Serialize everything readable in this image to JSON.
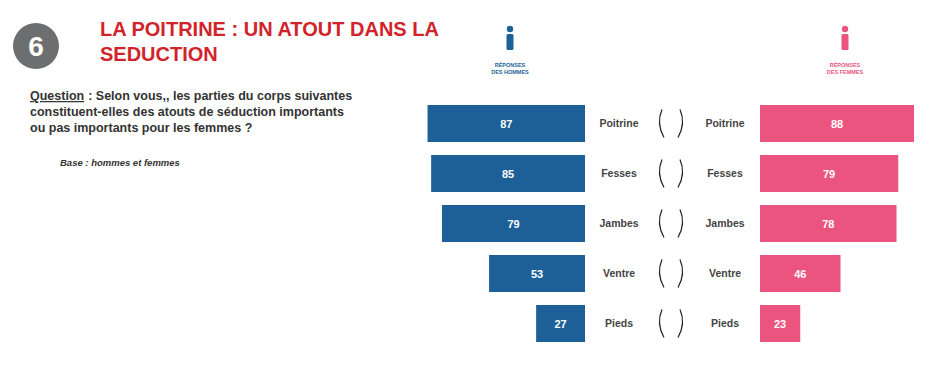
{
  "number": "6",
  "question_label": "Question",
  "question": ": Selon vous,, les parties du corps suivantes constituent-elles des atouts de séduction importants ou pas importants pour les femmes ?",
  "base": "Base : hommes et femmes",
  "chart_data": {
    "type": "bar",
    "orientation": "horizontal",
    "title": "LA POITRINE : UN ATOUT DANS LA SEDUCTION",
    "categories": [
      "Poitrine",
      "Fesses",
      "Jambes",
      "Ventre",
      "Pieds"
    ],
    "series": [
      {
        "name": "RÉPONSES DES HOMMES",
        "color": "#1d5f97",
        "values": [
          87,
          85,
          79,
          53,
          27
        ]
      },
      {
        "name": "RÉPONSES DES FEMMES",
        "color": "#ec5480",
        "values": [
          88,
          79,
          78,
          46,
          23
        ]
      }
    ],
    "xlim": [
      0,
      100
    ],
    "data_labels": true,
    "tick_labels": "y"
  }
}
